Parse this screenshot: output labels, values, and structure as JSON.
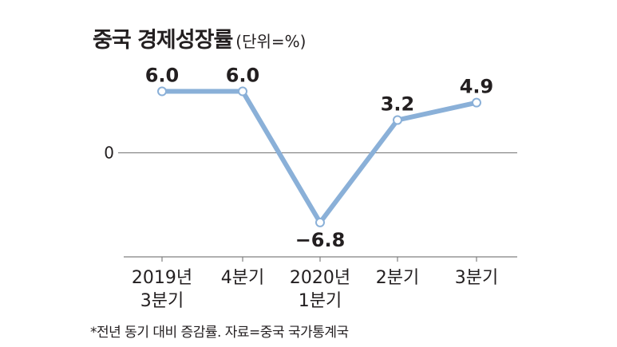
{
  "chart_data": {
    "type": "line",
    "title": "중국 경제성장률",
    "unit": "(단위=%)",
    "categories": [
      [
        "2019년",
        "3분기"
      ],
      [
        "4분기"
      ],
      [
        "2020년",
        "1분기"
      ],
      [
        "2분기"
      ],
      [
        "3분기"
      ]
    ],
    "values": [
      6.0,
      6.0,
      -6.8,
      3.2,
      4.9
    ],
    "value_labels": [
      "6.0",
      "6.0",
      "−6.8",
      "3.2",
      "4.9"
    ],
    "y_tick_labels": [
      "0"
    ],
    "ylim": [
      -10.0,
      8.3
    ],
    "grid": "zero line only",
    "colors": {
      "line": "#8ab0d8",
      "marker_fill": "#ffffff",
      "axis": "#808080"
    },
    "footnote": "*전년 동기 대비 증감률. 자료=중국 국가통계국"
  }
}
